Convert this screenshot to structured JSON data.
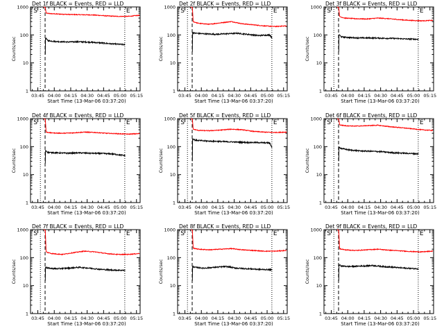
{
  "chart_data": [
    {
      "type": "line",
      "panel_id": "det-1f",
      "title": "Det 1f BLACK = Events, RED = LLD",
      "xlabel": "Start Time (13-Mar-06 03:37:20)",
      "ylabel": "Counts/sec",
      "x_range_min": [
        1,
        101
      ],
      "ylim": [
        1,
        1000
      ],
      "y_scale": "log",
      "x_tick_labels": [
        "03:45",
        "04:00",
        "04:15",
        "04:30",
        "04:45",
        "05:00",
        "05:15"
      ],
      "y_tick_labels": [
        "1",
        "10",
        "100",
        "1000"
      ],
      "markers": {
        "S": 10,
        "E": 87
      },
      "dotted_lines_min": [
        10,
        87
      ],
      "dashed_line_min": 14.3,
      "red_drop_min": 15.2,
      "series": [
        {
          "name": "LLD",
          "color": "#ff0000",
          "start_min": 13.0,
          "end_min": 100.5,
          "x": [
            13,
            15,
            18,
            25,
            35,
            45,
            55,
            60,
            70,
            80,
            90,
            100
          ],
          "y": [
            1000,
            600,
            580,
            560,
            540,
            530,
            520,
            510,
            480,
            460,
            460,
            500
          ]
        },
        {
          "name": "Events",
          "color": "#000000",
          "start_min": 14.5,
          "end_min": 87.3,
          "x": [
            14.5,
            15,
            17,
            25,
            35,
            45,
            55,
            65,
            75,
            87
          ],
          "y": [
            20,
            75,
            62,
            58,
            56,
            57,
            55,
            52,
            48,
            45
          ]
        }
      ]
    },
    {
      "type": "line",
      "panel_id": "det-2f",
      "title": "Det 2f BLACK = Events, RED = LLD",
      "xlabel": "Start Time (13-Mar-06 03:37:20)",
      "ylabel": "Counts/sec",
      "x_range_min": [
        1,
        101
      ],
      "ylim": [
        1,
        1000
      ],
      "y_scale": "log",
      "x_tick_labels": [
        "03:45",
        "04:00",
        "04:15",
        "04:30",
        "04:45",
        "05:00",
        "05:15"
      ],
      "y_tick_labels": [
        "1",
        "10",
        "100",
        "1000"
      ],
      "markers": {
        "S": 10,
        "E": 87
      },
      "dotted_lines_min": [
        10,
        87
      ],
      "dashed_line_min": 14.3,
      "red_drop_min": 15.2,
      "series": [
        {
          "name": "LLD",
          "color": "#ff0000",
          "start_min": 13.0,
          "end_min": 100.5,
          "x": [
            13,
            15,
            20,
            30,
            40,
            50,
            60,
            70,
            80,
            90,
            100
          ],
          "y": [
            1000,
            300,
            260,
            240,
            270,
            300,
            250,
            230,
            210,
            200,
            210
          ]
        },
        {
          "name": "Events",
          "color": "#000000",
          "start_min": 14.5,
          "end_min": 87.3,
          "x": [
            14.5,
            15,
            17,
            25,
            35,
            45,
            55,
            65,
            75,
            85,
            87
          ],
          "y": [
            25,
            120,
            115,
            110,
            105,
            110,
            115,
            105,
            95,
            100,
            80
          ]
        }
      ]
    },
    {
      "type": "line",
      "panel_id": "det-3f",
      "title": "Det 3f BLACK = Events, RED = LLD",
      "xlabel": "Start Time (13-Mar-06 03:37:20)",
      "ylabel": "Counts/sec",
      "x_range_min": [
        1,
        101
      ],
      "ylim": [
        1,
        1000
      ],
      "y_scale": "log",
      "x_tick_labels": [
        "03:45",
        "04:00",
        "04:15",
        "04:30",
        "04:45",
        "05:00",
        "05:15"
      ],
      "y_tick_labels": [
        "1",
        "10",
        "100",
        "1000"
      ],
      "markers": {
        "S": 10,
        "E": 87
      },
      "dotted_lines_min": [
        10,
        87
      ],
      "dashed_line_min": 14.3,
      "red_drop_min": 15.2,
      "series": [
        {
          "name": "LLD",
          "color": "#ff0000",
          "start_min": 13.0,
          "end_min": 100.5,
          "x": [
            13,
            15,
            20,
            30,
            40,
            50,
            60,
            70,
            80,
            90,
            100
          ],
          "y": [
            1000,
            450,
            400,
            380,
            370,
            400,
            380,
            350,
            330,
            320,
            330
          ]
        },
        {
          "name": "Events",
          "color": "#000000",
          "start_min": 14.5,
          "end_min": 87.3,
          "x": [
            14.5,
            15,
            17,
            25,
            35,
            45,
            55,
            65,
            75,
            87
          ],
          "y": [
            25,
            100,
            85,
            80,
            78,
            78,
            76,
            75,
            72,
            70
          ]
        }
      ]
    },
    {
      "type": "line",
      "panel_id": "det-4f",
      "title": "Det 4f BLACK = Events, RED = LLD",
      "xlabel": "Start Time (13-Mar-06 03:37:20)",
      "ylabel": "Counts/sec",
      "x_range_min": [
        1,
        101
      ],
      "ylim": [
        1,
        1000
      ],
      "y_scale": "log",
      "x_tick_labels": [
        "03:45",
        "04:00",
        "04:15",
        "04:30",
        "04:45",
        "05:00",
        "05:15"
      ],
      "y_tick_labels": [
        "1",
        "10",
        "100",
        "1000"
      ],
      "markers": {
        "S": 10,
        "E": 87
      },
      "dotted_lines_min": [
        10,
        87
      ],
      "dashed_line_min": 14.3,
      "red_drop_min": 15.2,
      "series": [
        {
          "name": "LLD",
          "color": "#ff0000",
          "start_min": 13.0,
          "end_min": 100.5,
          "x": [
            13,
            15,
            20,
            30,
            40,
            50,
            60,
            70,
            80,
            90,
            100
          ],
          "y": [
            1000,
            330,
            310,
            300,
            310,
            330,
            320,
            300,
            290,
            280,
            290
          ]
        },
        {
          "name": "Events",
          "color": "#000000",
          "start_min": 14.5,
          "end_min": 87.3,
          "x": [
            14.5,
            15,
            17,
            25,
            35,
            45,
            55,
            65,
            75,
            87
          ],
          "y": [
            25,
            72,
            62,
            60,
            58,
            60,
            58,
            57,
            55,
            48
          ]
        }
      ]
    },
    {
      "type": "line",
      "panel_id": "det-5f",
      "title": "Det 5f BLACK = Events, RED = LLD",
      "xlabel": "Start Time (13-Mar-06 03:37:20)",
      "ylabel": "Counts/sec",
      "x_range_min": [
        1,
        101
      ],
      "ylim": [
        1,
        1000
      ],
      "y_scale": "log",
      "x_tick_labels": [
        "03:45",
        "04:00",
        "04:15",
        "04:30",
        "04:45",
        "05:00",
        "05:15"
      ],
      "y_tick_labels": [
        "1",
        "10",
        "100",
        "1000"
      ],
      "markers": {
        "S": 10,
        "E": 87
      },
      "dotted_lines_min": [
        10,
        87
      ],
      "dashed_line_min": 14.3,
      "red_drop_min": 15.2,
      "series": [
        {
          "name": "LLD",
          "color": "#ff0000",
          "start_min": 13.0,
          "end_min": 100.5,
          "x": [
            13,
            15,
            20,
            30,
            40,
            50,
            60,
            70,
            80,
            90,
            100
          ],
          "y": [
            1000,
            420,
            380,
            370,
            390,
            420,
            400,
            350,
            330,
            320,
            330
          ]
        },
        {
          "name": "Events",
          "color": "#000000",
          "start_min": 14.5,
          "end_min": 87.3,
          "x": [
            14.5,
            15,
            17,
            25,
            35,
            45,
            55,
            65,
            75,
            85,
            87
          ],
          "y": [
            30,
            190,
            170,
            160,
            155,
            150,
            145,
            140,
            140,
            135,
            95
          ]
        }
      ]
    },
    {
      "type": "line",
      "panel_id": "det-6f",
      "title": "Det 6f BLACK = Events, RED = LLD",
      "xlabel": "Start Time (13-Mar-06 03:37:20)",
      "ylabel": "Counts/sec",
      "x_range_min": [
        1,
        101
      ],
      "ylim": [
        1,
        1000
      ],
      "y_scale": "log",
      "x_tick_labels": [
        "03:45",
        "04:00",
        "04:15",
        "04:30",
        "04:45",
        "05:00",
        "05:15"
      ],
      "y_tick_labels": [
        "1",
        "10",
        "100",
        "1000"
      ],
      "markers": {
        "S": 10,
        "E": 87
      },
      "dotted_lines_min": [
        10,
        87
      ],
      "dashed_line_min": 14.3,
      "red_drop_min": 15.2,
      "series": [
        {
          "name": "LLD",
          "color": "#ff0000",
          "start_min": 13.0,
          "end_min": 100.5,
          "x": [
            13,
            15,
            20,
            30,
            40,
            50,
            60,
            70,
            80,
            90,
            100
          ],
          "y": [
            1000,
            600,
            560,
            540,
            560,
            580,
            520,
            480,
            440,
            400,
            380
          ]
        },
        {
          "name": "Events",
          "color": "#000000",
          "start_min": 14.5,
          "end_min": 87.3,
          "x": [
            14.5,
            15,
            17,
            25,
            35,
            45,
            55,
            65,
            75,
            87
          ],
          "y": [
            30,
            95,
            85,
            75,
            70,
            68,
            65,
            60,
            58,
            55
          ]
        }
      ]
    },
    {
      "type": "line",
      "panel_id": "det-7f",
      "title": "Det 7f BLACK = Events, RED = LLD",
      "xlabel": "Start Time (13-Mar-06 03:37:20)",
      "ylabel": "Counts/sec",
      "x_range_min": [
        1,
        101
      ],
      "ylim": [
        1,
        1000
      ],
      "y_scale": "log",
      "x_tick_labels": [
        "03:45",
        "04:00",
        "04:15",
        "04:30",
        "04:45",
        "05:00",
        "05:15"
      ],
      "y_tick_labels": [
        "1",
        "10",
        "100",
        "1000"
      ],
      "markers": {
        "S": 10,
        "E": 87
      },
      "dotted_lines_min": [
        10,
        87
      ],
      "dashed_line_min": 14.3,
      "red_drop_min": 15.2,
      "series": [
        {
          "name": "LLD",
          "color": "#ff0000",
          "start_min": 13.0,
          "end_min": 100.5,
          "x": [
            13,
            15,
            20,
            30,
            40,
            50,
            60,
            70,
            80,
            90,
            100
          ],
          "y": [
            1000,
            160,
            140,
            130,
            150,
            170,
            160,
            140,
            130,
            130,
            140
          ]
        },
        {
          "name": "Events",
          "color": "#000000",
          "start_min": 14.5,
          "end_min": 87.3,
          "x": [
            14.5,
            15,
            17,
            25,
            35,
            45,
            55,
            65,
            75,
            87
          ],
          "y": [
            15,
            45,
            42,
            40,
            42,
            45,
            42,
            38,
            36,
            35
          ]
        }
      ]
    },
    {
      "type": "line",
      "panel_id": "det-8f",
      "title": "Det 8f BLACK = Events, RED = LLD",
      "xlabel": "Start Time (13-Mar-06 03:37:20)",
      "ylabel": "Counts/sec",
      "x_range_min": [
        1,
        101
      ],
      "ylim": [
        1,
        1000
      ],
      "y_scale": "log",
      "x_tick_labels": [
        "03:45",
        "04:00",
        "04:15",
        "04:30",
        "04:45",
        "05:00",
        "05:15"
      ],
      "y_tick_labels": [
        "1",
        "10",
        "100",
        "1000"
      ],
      "markers": {
        "S": 10,
        "E": 87
      },
      "dotted_lines_min": [
        10,
        87
      ],
      "dashed_line_min": 14.3,
      "red_drop_min": 15.2,
      "series": [
        {
          "name": "LLD",
          "color": "#ff0000",
          "start_min": 13.0,
          "end_min": 100.5,
          "x": [
            13,
            15,
            20,
            30,
            40,
            50,
            60,
            70,
            80,
            90,
            100
          ],
          "y": [
            1000,
            220,
            200,
            190,
            200,
            210,
            190,
            180,
            170,
            170,
            180
          ]
        },
        {
          "name": "Events",
          "color": "#000000",
          "start_min": 14.5,
          "end_min": 87.3,
          "x": [
            14.5,
            15,
            17,
            25,
            35,
            45,
            55,
            65,
            75,
            87
          ],
          "y": [
            15,
            48,
            45,
            42,
            45,
            48,
            42,
            40,
            38,
            37
          ]
        }
      ]
    },
    {
      "type": "line",
      "panel_id": "det-9f",
      "title": "Det 9f BLACK = Events, RED = LLD",
      "xlabel": "Start Time (13-Mar-06 03:37:20)",
      "ylabel": "Counts/sec",
      "x_range_min": [
        1,
        101
      ],
      "ylim": [
        1,
        1000
      ],
      "y_scale": "log",
      "x_tick_labels": [
        "03:45",
        "04:00",
        "04:15",
        "04:30",
        "04:45",
        "05:00",
        "05:15"
      ],
      "y_tick_labels": [
        "1",
        "10",
        "100",
        "1000"
      ],
      "markers": {
        "S": 10,
        "E": 87
      },
      "dotted_lines_min": [
        10,
        87
      ],
      "dashed_line_min": 14.3,
      "red_drop_min": 15.2,
      "series": [
        {
          "name": "LLD",
          "color": "#ff0000",
          "start_min": 13.0,
          "end_min": 100.5,
          "x": [
            13,
            15,
            20,
            30,
            40,
            50,
            60,
            70,
            80,
            90,
            100
          ],
          "y": [
            1000,
            210,
            190,
            180,
            190,
            200,
            185,
            175,
            165,
            160,
            170
          ]
        },
        {
          "name": "Events",
          "color": "#000000",
          "start_min": 14.5,
          "end_min": 87.3,
          "x": [
            14.5,
            15,
            17,
            25,
            35,
            45,
            55,
            65,
            75,
            87
          ],
          "y": [
            15,
            55,
            50,
            48,
            50,
            52,
            48,
            45,
            42,
            40
          ]
        }
      ]
    }
  ]
}
